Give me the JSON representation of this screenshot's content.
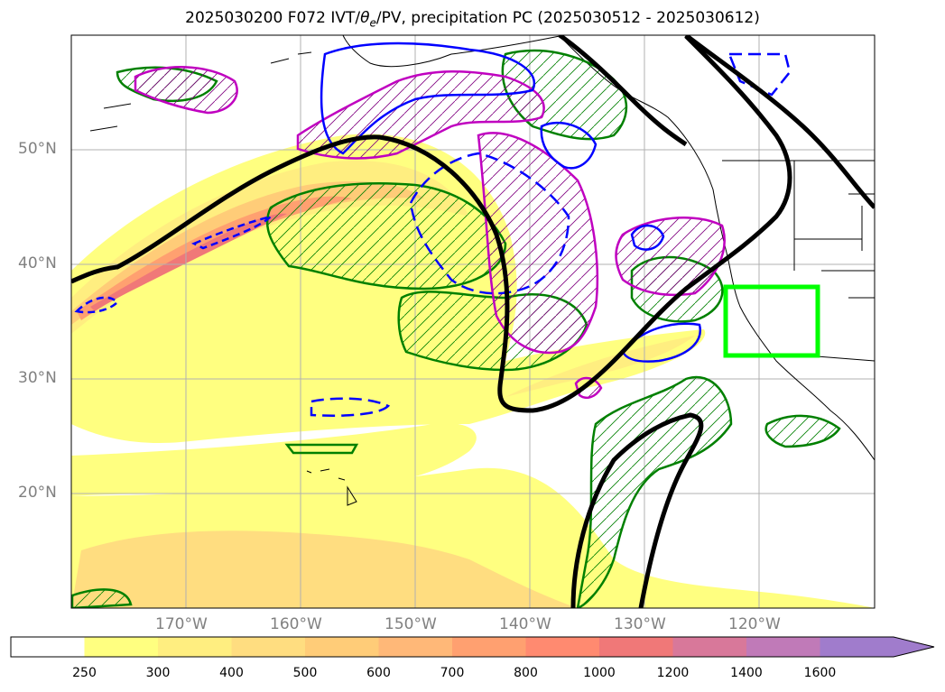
{
  "title": {
    "prefix": "2025030200 F072 IVT/",
    "theta_symbol": "θ",
    "theta_sub": "e",
    "suffix": "/PV, precipitation PC (2025030512 - 2025030612)"
  },
  "map": {
    "projection": "cylindrical",
    "lon_range": [
      -180,
      -110
    ],
    "lat_range": [
      10,
      60
    ],
    "lat_ticks": [
      {
        "lat": 20,
        "label": "20°N"
      },
      {
        "lat": 30,
        "label": "30°N"
      },
      {
        "lat": 40,
        "label": "40°N"
      },
      {
        "lat": 50,
        "label": "50°N"
      }
    ],
    "lon_ticks": [
      {
        "lon": -170,
        "label": "170°W"
      },
      {
        "lon": -160,
        "label": "160°W"
      },
      {
        "lon": -150,
        "label": "150°W"
      },
      {
        "lon": -140,
        "label": "140°W"
      },
      {
        "lon": -130,
        "label": "130°W"
      },
      {
        "lon": -120,
        "label": "120°W"
      }
    ],
    "highlight_box": {
      "lon_min": -122.5,
      "lon_max": -114.5,
      "lat_min": 32,
      "lat_max": 38,
      "color": "#00ff00"
    },
    "colors": {
      "theta_e_contour": "#000000",
      "pv_contour": "#c000c0",
      "precip_contour": "#008000",
      "ivt_anomaly": "#0000ff"
    }
  },
  "colorbar": {
    "levels": [
      {
        "label": "250",
        "color": "#ffff80"
      },
      {
        "label": "300",
        "color": "#ffee80"
      },
      {
        "label": "400",
        "color": "#ffdd80"
      },
      {
        "label": "500",
        "color": "#ffcc78"
      },
      {
        "label": "600",
        "color": "#ffb878"
      },
      {
        "label": "700",
        "color": "#ffa070"
      },
      {
        "label": "800",
        "color": "#ff8a70"
      },
      {
        "label": "1000",
        "color": "#f07878"
      },
      {
        "label": "1200",
        "color": "#d8789a"
      },
      {
        "label": "1400",
        "color": "#c07ab8"
      },
      {
        "label": "1600",
        "color": "#a07ccc"
      }
    ],
    "first_bin_color": "#ffffff",
    "extend": "max"
  }
}
